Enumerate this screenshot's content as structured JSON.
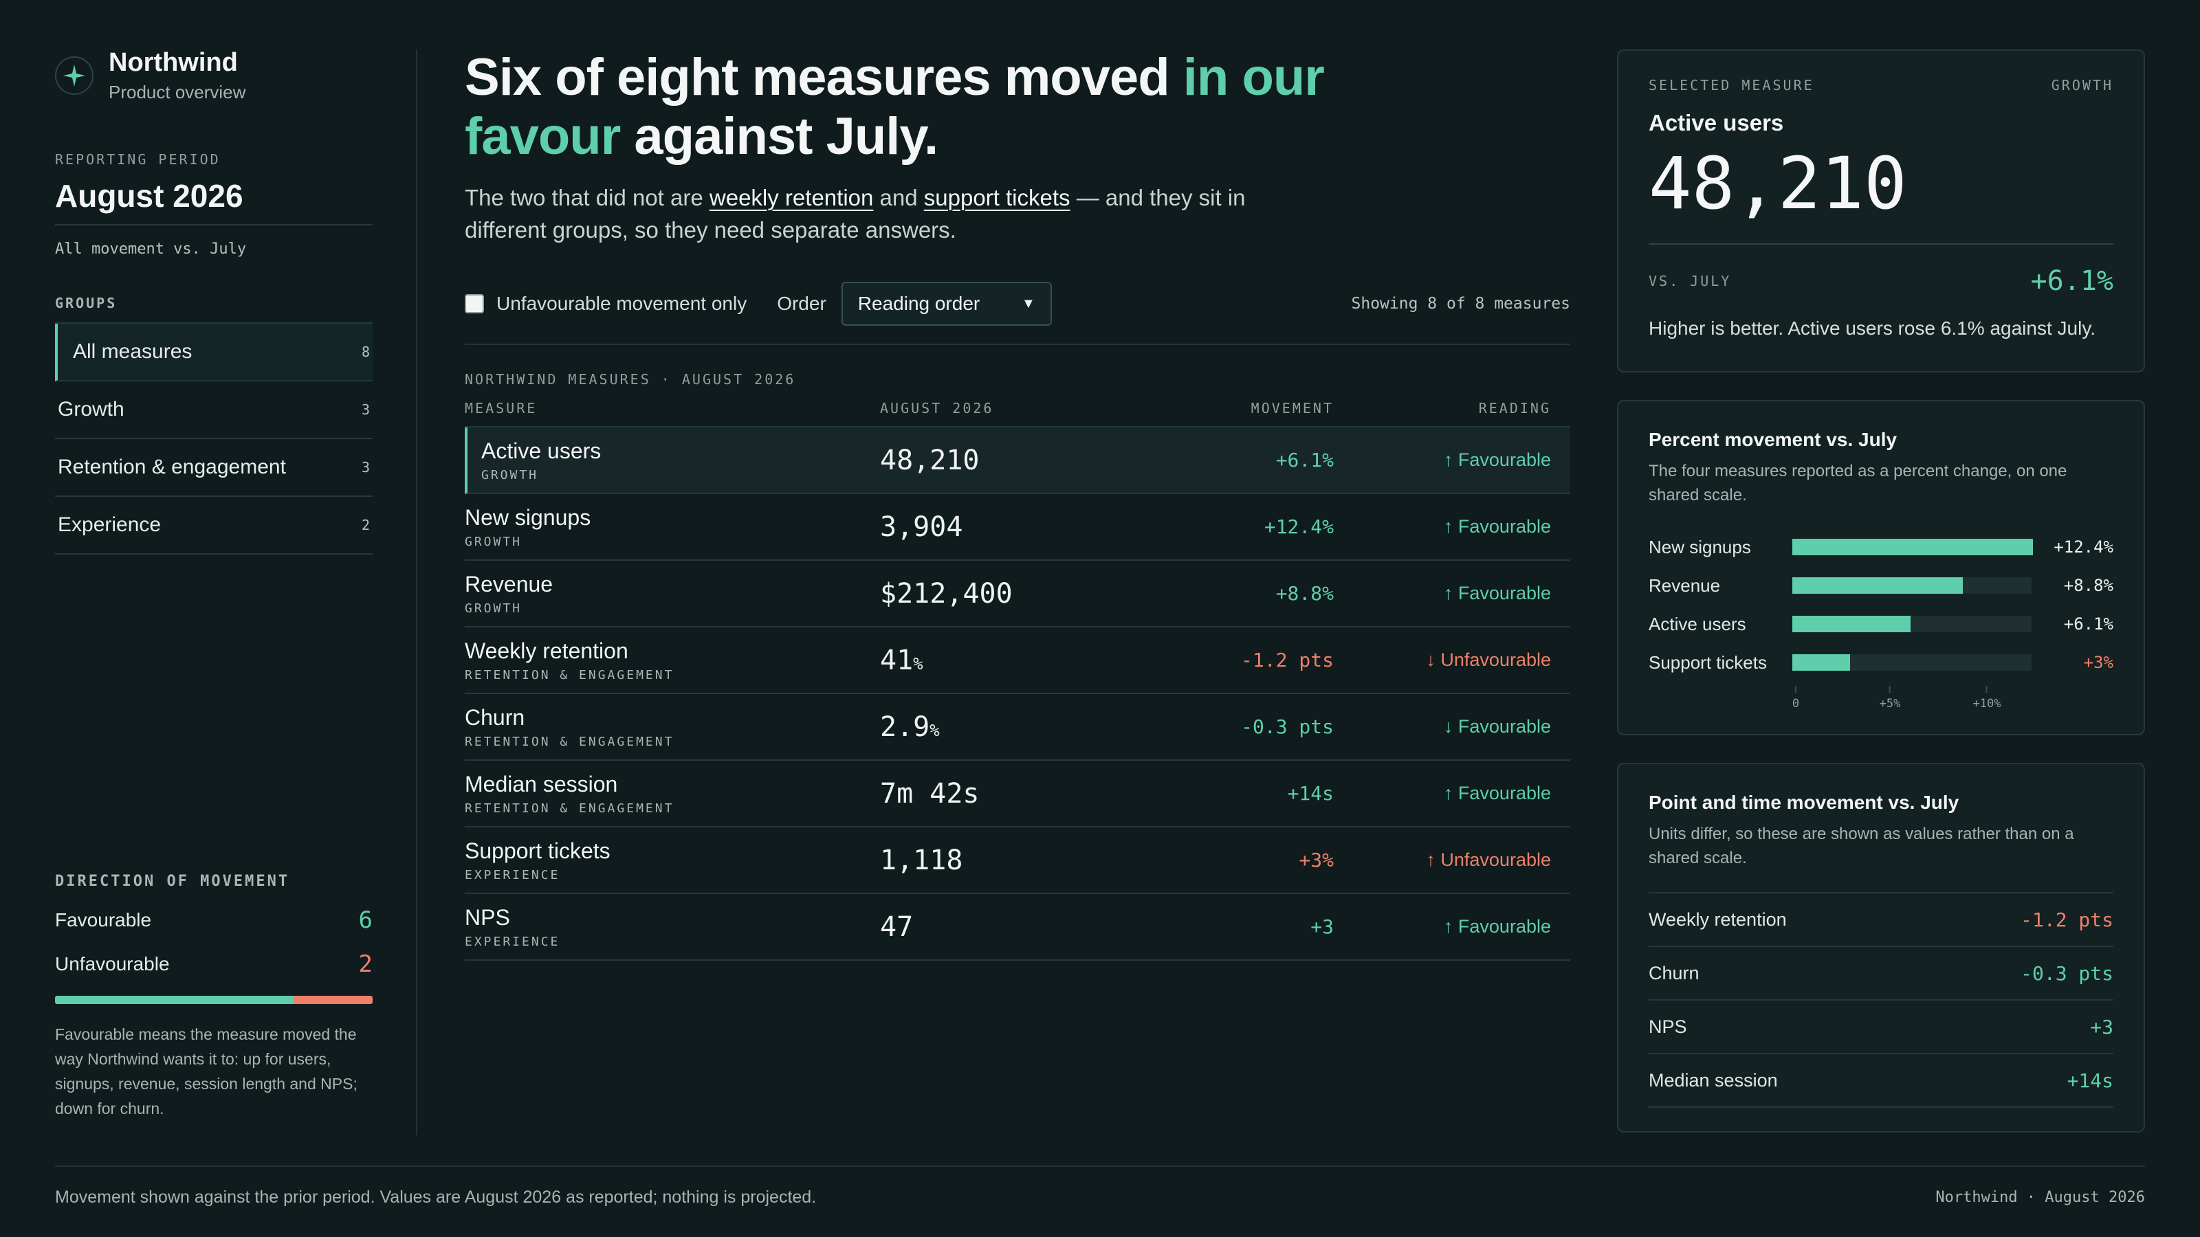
{
  "brand": {
    "name": "Northwind",
    "subtitle": "Product overview",
    "icon": "compass-star-icon"
  },
  "period": {
    "label": "REPORTING PERIOD",
    "value": "August 2026",
    "note": "All movement vs. July"
  },
  "groups": {
    "label": "GROUPS",
    "items": [
      {
        "label": "All measures",
        "count": "8",
        "active": true
      },
      {
        "label": "Growth",
        "count": "3"
      },
      {
        "label": "Retention & engagement",
        "count": "3"
      },
      {
        "label": "Experience",
        "count": "2"
      }
    ]
  },
  "direction": {
    "label": "DIRECTION OF MOVEMENT",
    "favourable_label": "Favourable",
    "favourable_count": "6",
    "favourable_value": 6,
    "unfavourable_label": "Unfavourable",
    "unfavourable_count": "2",
    "unfavourable_value": 2,
    "note": "Favourable means the measure moved the way Northwind wants it to: up for users, signups, revenue, session length and NPS; down for churn."
  },
  "headline": {
    "part1": "Six of eight measures moved ",
    "accent": "in our favour",
    "part2": " against July."
  },
  "dek": {
    "part1": "The two that did not are ",
    "link1": "weekly retention",
    "part2": " and ",
    "link2": "support tickets",
    "part3": " — and they sit in different groups, so they need separate answers."
  },
  "filters": {
    "checkbox_label": "Unfavourable movement only",
    "order_label": "Order",
    "order_value": "Reading order",
    "showing": "Showing 8 of 8 measures"
  },
  "table": {
    "caption": "NORTHWIND MEASURES · AUGUST 2026",
    "headers": [
      "MEASURE",
      "AUGUST 2026",
      "MOVEMENT",
      "READING"
    ],
    "rows": [
      {
        "name": "Active users",
        "group": "GROWTH",
        "value": "48,210",
        "unit": "",
        "movement": "+6.1%",
        "reading": "↑ Favourable",
        "tone": "pos",
        "selected": true
      },
      {
        "name": "New signups",
        "group": "GROWTH",
        "value": "3,904",
        "unit": "",
        "movement": "+12.4%",
        "reading": "↑ Favourable",
        "tone": "pos"
      },
      {
        "name": "Revenue",
        "group": "GROWTH",
        "value": "$212,400",
        "unit": "",
        "movement": "+8.8%",
        "reading": "↑ Favourable",
        "tone": "pos"
      },
      {
        "name": "Weekly retention",
        "group": "RETENTION & ENGAGEMENT",
        "value": "41",
        "unit": "%",
        "movement": "-1.2 pts",
        "reading": "↓ Unfavourable",
        "tone": "neg"
      },
      {
        "name": "Churn",
        "group": "RETENTION & ENGAGEMENT",
        "value": "2.9",
        "unit": "%",
        "movement": "-0.3 pts",
        "reading": "↓ Favourable",
        "tone": "pos"
      },
      {
        "name": "Median session",
        "group": "RETENTION & ENGAGEMENT",
        "value": "7m 42s",
        "unit": "",
        "movement": "+14s",
        "reading": "↑ Favourable",
        "tone": "pos"
      },
      {
        "name": "Support tickets",
        "group": "EXPERIENCE",
        "value": "1,118",
        "unit": "",
        "movement": "+3%",
        "reading": "↑ Unfavourable",
        "tone": "neg"
      },
      {
        "name": "NPS",
        "group": "EXPERIENCE",
        "value": "47",
        "unit": "",
        "movement": "+3",
        "reading": "↑ Favourable",
        "tone": "pos"
      }
    ]
  },
  "selected": {
    "label": "SELECTED MEASURE",
    "group": "GROWTH",
    "name": "Active users",
    "value": "48,210",
    "vs_label": "VS. JULY",
    "movement": "+6.1%",
    "description": "Higher is better. Active users rose 6.1% against July."
  },
  "percent_panel": {
    "title": "Percent movement vs. July",
    "subtitle": "The four measures reported as a percent change, on one shared scale.",
    "ticks": [
      "0",
      "+5%",
      "+10%"
    ]
  },
  "chart_data": {
    "type": "bar",
    "orientation": "horizontal",
    "categories": [
      "New signups",
      "Revenue",
      "Active users",
      "Support tickets"
    ],
    "values": [
      12.4,
      8.8,
      6.1,
      3
    ],
    "labels": [
      "+12.4%",
      "+8.8%",
      "+6.1%",
      "+3%"
    ],
    "tones": [
      "pos",
      "pos",
      "pos",
      "neg"
    ],
    "xlim": [
      0,
      12.4
    ],
    "xticks": [
      "0",
      "+5%",
      "+10%"
    ]
  },
  "point_panel": {
    "title": "Point and time movement vs. July",
    "subtitle": "Units differ, so these are shown as values rather than on a shared scale.",
    "items": [
      {
        "label": "Weekly retention",
        "value": "-1.2 pts",
        "tone": "neg"
      },
      {
        "label": "Churn",
        "value": "-0.3 pts",
        "tone": "pos"
      },
      {
        "label": "NPS",
        "value": "+3",
        "tone": "pos"
      },
      {
        "label": "Median session",
        "value": "+14s",
        "tone": "pos"
      }
    ]
  },
  "footer": {
    "left": "Movement shown against the prior period. Values are August 2026 as reported; nothing is projected.",
    "right": "Northwind · August 2026"
  },
  "colors": {
    "background": "#0f1b1d",
    "accent": "#5ecfaa",
    "negative": "#ee8067"
  }
}
